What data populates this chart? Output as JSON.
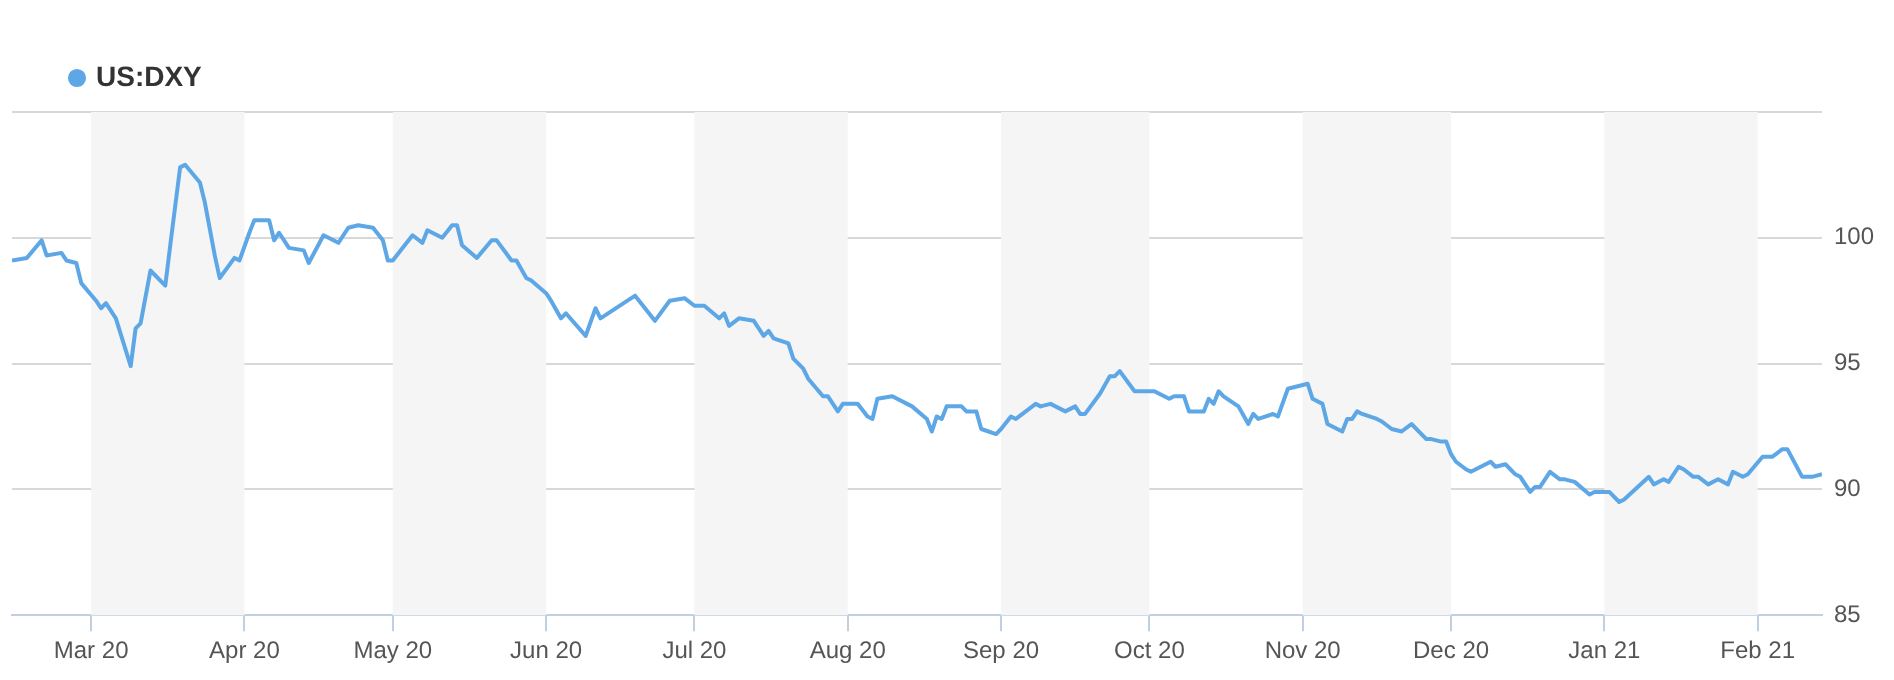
{
  "chart_data": {
    "type": "line",
    "legend": "top left",
    "grid": "y",
    "marker": "none",
    "line_style": "solid",
    "xlim": [
      "2020-02-14",
      "2021-02-14"
    ],
    "xticks": [
      {
        "value": "2020-03-01",
        "label": "Mar 20"
      },
      {
        "value": "2020-04-01",
        "label": "Apr 20"
      },
      {
        "value": "2020-05-01",
        "label": "May 20"
      },
      {
        "value": "2020-06-01",
        "label": "Jun 20"
      },
      {
        "value": "2020-07-01",
        "label": "Jul 20"
      },
      {
        "value": "2020-08-01",
        "label": "Aug 20"
      },
      {
        "value": "2020-09-01",
        "label": "Sep 20"
      },
      {
        "value": "2020-10-01",
        "label": "Oct 20"
      },
      {
        "value": "2020-11-01",
        "label": "Nov 20"
      },
      {
        "value": "2020-12-01",
        "label": "Dec 20"
      },
      {
        "value": "2021-01-01",
        "label": "Jan 21"
      },
      {
        "value": "2021-02-01",
        "label": "Feb 21"
      }
    ],
    "ylim": [
      85,
      105
    ],
    "yticks": [
      85,
      90,
      95,
      100,
      {
        "value": 105,
        "label": null
      }
    ],
    "bands": [
      {
        "axis": "x",
        "from": "2020-03-01",
        "to": "2020-04-01",
        "color": "#f5f5f5"
      },
      {
        "axis": "x",
        "from": "2020-05-01",
        "to": "2020-06-01",
        "color": "#f5f5f5"
      },
      {
        "axis": "x",
        "from": "2020-07-01",
        "to": "2020-08-01",
        "color": "#f5f5f5"
      },
      {
        "axis": "x",
        "from": "2020-09-01",
        "to": "2020-10-01",
        "color": "#f5f5f5"
      },
      {
        "axis": "x",
        "from": "2020-11-01",
        "to": "2020-12-01",
        "color": "#f5f5f5"
      },
      {
        "axis": "x",
        "from": "2021-01-01",
        "to": "2021-02-01",
        "color": "#f5f5f5"
      }
    ],
    "series": [
      {
        "name": "US:DXY",
        "color": "#5ea7e6",
        "x": [
          "2020-02-14",
          "2020-02-17",
          "2020-02-20",
          "2020-02-21",
          "2020-02-24",
          "2020-02-25",
          "2020-02-27",
          "2020-02-28",
          "2020-03-02",
          "2020-03-03",
          "2020-03-04",
          "2020-03-06",
          "2020-03-09",
          "2020-03-10",
          "2020-03-11",
          "2020-03-13",
          "2020-03-16",
          "2020-03-17",
          "2020-03-19",
          "2020-03-20",
          "2020-03-23",
          "2020-03-24",
          "2020-03-26",
          "2020-03-27",
          "2020-03-30",
          "2020-03-31",
          "2020-04-02",
          "2020-04-03",
          "2020-04-06",
          "2020-04-07",
          "2020-04-08",
          "2020-04-10",
          "2020-04-13",
          "2020-04-14",
          "2020-04-17",
          "2020-04-20",
          "2020-04-22",
          "2020-04-24",
          "2020-04-27",
          "2020-04-29",
          "2020-04-30",
          "2020-05-01",
          "2020-05-05",
          "2020-05-07",
          "2020-05-08",
          "2020-05-11",
          "2020-05-13",
          "2020-05-14",
          "2020-05-15",
          "2020-05-18",
          "2020-05-21",
          "2020-05-22",
          "2020-05-25",
          "2020-05-26",
          "2020-05-28",
          "2020-05-29",
          "2020-06-01",
          "2020-06-02",
          "2020-06-04",
          "2020-06-05",
          "2020-06-09",
          "2020-06-11",
          "2020-06-12",
          "2020-06-19",
          "2020-06-23",
          "2020-06-26",
          "2020-06-29",
          "2020-07-01",
          "2020-07-03",
          "2020-07-06",
          "2020-07-07",
          "2020-07-08",
          "2020-07-10",
          "2020-07-13",
          "2020-07-15",
          "2020-07-16",
          "2020-07-17",
          "2020-07-20",
          "2020-07-21",
          "2020-07-23",
          "2020-07-24",
          "2020-07-27",
          "2020-07-28",
          "2020-07-30",
          "2020-07-31",
          "2020-08-03",
          "2020-08-05",
          "2020-08-06",
          "2020-08-07",
          "2020-08-10",
          "2020-08-14",
          "2020-08-17",
          "2020-08-18",
          "2020-08-19",
          "2020-08-20",
          "2020-08-21",
          "2020-08-24",
          "2020-08-25",
          "2020-08-27",
          "2020-08-28",
          "2020-08-31",
          "2020-09-01",
          "2020-09-03",
          "2020-09-04",
          "2020-09-08",
          "2020-09-09",
          "2020-09-11",
          "2020-09-14",
          "2020-09-16",
          "2020-09-17",
          "2020-09-18",
          "2020-09-21",
          "2020-09-23",
          "2020-09-24",
          "2020-09-25",
          "2020-09-28",
          "2020-09-29",
          "2020-10-02",
          "2020-10-05",
          "2020-10-06",
          "2020-10-08",
          "2020-10-09",
          "2020-10-12",
          "2020-10-13",
          "2020-10-14",
          "2020-10-15",
          "2020-10-16",
          "2020-10-19",
          "2020-10-21",
          "2020-10-22",
          "2020-10-23",
          "2020-10-26",
          "2020-10-27",
          "2020-10-29",
          "2020-11-02",
          "2020-11-03",
          "2020-11-05",
          "2020-11-06",
          "2020-11-09",
          "2020-11-10",
          "2020-11-11",
          "2020-11-12",
          "2020-11-13",
          "2020-11-16",
          "2020-11-17",
          "2020-11-19",
          "2020-11-21",
          "2020-11-23",
          "2020-11-26",
          "2020-11-27",
          "2020-11-29",
          "2020-11-30",
          "2020-12-01",
          "2020-12-02",
          "2020-12-04",
          "2020-12-05",
          "2020-12-07",
          "2020-12-09",
          "2020-12-10",
          "2020-12-12",
          "2020-12-14",
          "2020-12-15",
          "2020-12-17",
          "2020-12-18",
          "2020-12-19",
          "2020-12-21",
          "2020-12-23",
          "2020-12-24",
          "2020-12-26",
          "2020-12-29",
          "2020-12-30",
          "2021-01-02",
          "2021-01-04",
          "2021-01-05",
          "2021-01-10",
          "2021-01-11",
          "2021-01-13",
          "2021-01-14",
          "2021-01-16",
          "2021-01-17",
          "2021-01-19",
          "2021-01-20",
          "2021-01-22",
          "2021-01-24",
          "2021-01-26",
          "2021-01-27",
          "2021-01-29",
          "2021-01-30",
          "2021-02-02",
          "2021-02-04",
          "2021-02-06",
          "2021-02-07",
          "2021-02-10",
          "2021-02-12",
          "2021-02-14"
        ],
        "values": [
          99.1,
          99.2,
          99.9,
          99.3,
          99.4,
          99.1,
          99.0,
          98.2,
          97.5,
          97.2,
          97.4,
          96.8,
          94.9,
          96.4,
          96.6,
          98.7,
          98.1,
          99.7,
          102.8,
          102.9,
          102.2,
          101.4,
          99.3,
          98.4,
          99.2,
          99.1,
          100.2,
          100.7,
          100.7,
          99.9,
          100.2,
          99.6,
          99.5,
          99.0,
          100.1,
          99.8,
          100.4,
          100.5,
          100.4,
          99.9,
          99.1,
          99.1,
          100.1,
          99.8,
          100.3,
          100.0,
          100.5,
          100.5,
          99.7,
          99.2,
          99.9,
          99.9,
          99.1,
          99.1,
          98.4,
          98.3,
          97.8,
          97.5,
          96.8,
          97.0,
          96.1,
          97.2,
          96.8,
          97.7,
          96.7,
          97.5,
          97.6,
          97.3,
          97.3,
          96.8,
          97.0,
          96.5,
          96.8,
          96.7,
          96.1,
          96.3,
          96.0,
          95.8,
          95.2,
          94.8,
          94.4,
          93.7,
          93.7,
          93.1,
          93.4,
          93.4,
          92.9,
          92.8,
          93.6,
          93.7,
          93.3,
          92.8,
          92.3,
          92.9,
          92.8,
          93.3,
          93.3,
          93.1,
          93.1,
          92.4,
          92.2,
          92.4,
          92.9,
          92.8,
          93.4,
          93.3,
          93.4,
          93.1,
          93.3,
          93.0,
          93.0,
          93.8,
          94.5,
          94.5,
          94.7,
          93.9,
          93.9,
          93.9,
          93.6,
          93.7,
          93.7,
          93.1,
          93.1,
          93.6,
          93.4,
          93.9,
          93.7,
          93.3,
          92.6,
          93.0,
          92.8,
          93.0,
          92.9,
          94.0,
          94.2,
          93.6,
          93.4,
          92.6,
          92.3,
          92.8,
          92.8,
          93.1,
          93.0,
          92.8,
          92.7,
          92.4,
          92.3,
          92.6,
          92.0,
          92.0,
          91.9,
          91.9,
          91.4,
          91.1,
          90.8,
          90.7,
          90.9,
          91.1,
          90.9,
          91.0,
          90.6,
          90.5,
          89.9,
          90.1,
          90.1,
          90.7,
          90.4,
          90.4,
          90.3,
          89.8,
          89.9,
          89.9,
          89.5,
          89.6,
          90.5,
          90.2,
          90.4,
          90.3,
          90.9,
          90.8,
          90.5,
          90.5,
          90.2,
          90.4,
          90.2,
          90.7,
          90.5,
          90.6,
          91.3,
          91.3,
          91.6,
          91.6,
          90.5,
          90.5,
          90.6
        ]
      }
    ]
  }
}
